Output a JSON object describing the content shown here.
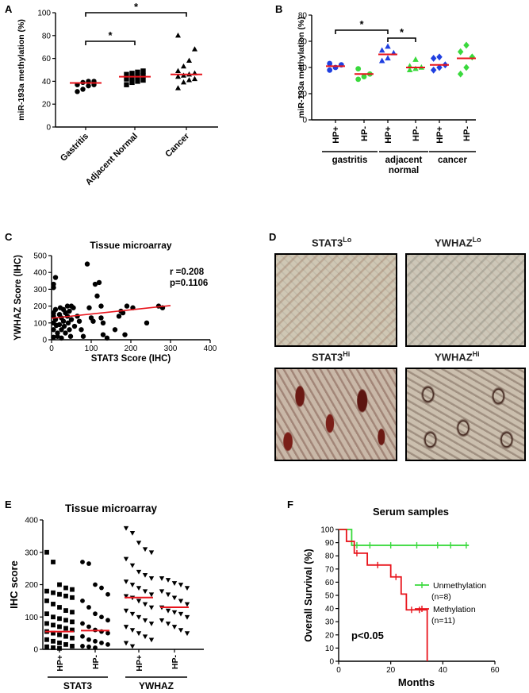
{
  "panels": {
    "a": "A",
    "b": "B",
    "c": "C",
    "d": "D",
    "e": "E",
    "f": "F"
  },
  "colors": {
    "red": "#e8141c",
    "blue": "#1f3fe0",
    "green": "#39d93c",
    "black": "#000000"
  },
  "chart_data": [
    {
      "panel": "A",
      "type": "scatter",
      "ylabel": "miR-193a methylation (%)",
      "ylim": [
        0,
        100
      ],
      "yticks": [
        "0",
        "20",
        "40",
        "60",
        "80",
        "100"
      ],
      "categories": [
        "Gastritis",
        "Adjacent Normal",
        "Cancer"
      ],
      "series": [
        {
          "category": "Gastritis",
          "marker": "circle",
          "values": [
            31,
            33,
            36,
            37,
            37,
            39,
            40,
            40
          ],
          "median": 38.5
        },
        {
          "category": "Adjacent Normal",
          "marker": "square",
          "values": [
            37,
            39,
            40,
            41,
            42,
            43,
            44,
            45,
            46,
            47,
            48,
            49
          ],
          "median": 44
        },
        {
          "category": "Cancer",
          "marker": "triangle",
          "values": [
            34,
            39,
            41,
            42,
            44,
            45,
            46,
            47,
            49,
            53,
            58,
            68,
            80
          ],
          "median": 46
        }
      ],
      "significance": [
        {
          "from": "Gastritis",
          "to": "Adjacent Normal",
          "label": "*"
        },
        {
          "from": "Gastritis",
          "to": "Cancer",
          "label": "*"
        }
      ]
    },
    {
      "panel": "B",
      "type": "scatter",
      "ylabel": "miR-193a methylation (%)",
      "ylim": [
        0,
        80
      ],
      "yticks": [
        "0",
        "20",
        "40",
        "60",
        "80"
      ],
      "categories": [
        "HP+",
        "HP-",
        "HP+",
        "HP-",
        "HP+",
        "HP-"
      ],
      "groups": [
        "gastritis",
        "adjacent\nnormal",
        "cancer"
      ],
      "series": [
        {
          "category": "HP+",
          "group": "gastritis",
          "marker": "circle",
          "color": "#1f3fe0",
          "values": [
            38,
            40,
            42,
            43
          ],
          "median": 41
        },
        {
          "category": "HP-",
          "group": "gastritis",
          "marker": "circle",
          "color": "#39d93c",
          "values": [
            31,
            33,
            35,
            39
          ],
          "median": 35
        },
        {
          "category": "HP+",
          "group": "adjacent normal",
          "marker": "triangle",
          "color": "#1f3fe0",
          "values": [
            45,
            47,
            51,
            53,
            56
          ],
          "median": 50
        },
        {
          "category": "HP-",
          "group": "adjacent normal",
          "marker": "triangle",
          "color": "#39d93c",
          "values": [
            38,
            39,
            40,
            41,
            46
          ],
          "median": 40
        },
        {
          "category": "HP+",
          "group": "cancer",
          "marker": "diamond",
          "color": "#1f3fe0",
          "values": [
            38,
            40,
            42,
            47,
            48
          ],
          "median": 42
        },
        {
          "category": "HP-",
          "group": "cancer",
          "marker": "diamond",
          "color": "#39d93c",
          "values": [
            35,
            40,
            48,
            52,
            57
          ],
          "median": 47
        }
      ],
      "significance": [
        {
          "from": 0,
          "to": 2,
          "label": "*"
        },
        {
          "from": 2,
          "to": 3,
          "label": "*"
        }
      ]
    },
    {
      "panel": "C",
      "type": "scatter",
      "title": "Tissue microarray",
      "xlabel": "STAT3 Score (IHC)",
      "ylabel": "YWHAZ Score (IHC)",
      "xlim": [
        0,
        400
      ],
      "ylim": [
        0,
        500
      ],
      "xticks": [
        "0",
        "100",
        "200",
        "300",
        "400"
      ],
      "yticks": [
        "0",
        "100",
        "200",
        "300",
        "400",
        "500"
      ],
      "annotation": [
        "r =0.208",
        "p=0.1106"
      ],
      "fit": {
        "x": [
          0,
          300
        ],
        "y": [
          128,
          203
        ]
      },
      "points": [
        [
          5,
          330
        ],
        [
          10,
          370
        ],
        [
          5,
          310
        ],
        [
          5,
          160
        ],
        [
          5,
          140
        ],
        [
          5,
          100
        ],
        [
          5,
          60
        ],
        [
          5,
          15
        ],
        [
          10,
          180
        ],
        [
          10,
          120
        ],
        [
          12,
          85
        ],
        [
          15,
          40
        ],
        [
          15,
          20
        ],
        [
          20,
          150
        ],
        [
          20,
          90
        ],
        [
          22,
          190
        ],
        [
          25,
          130
        ],
        [
          25,
          60
        ],
        [
          25,
          10
        ],
        [
          30,
          180
        ],
        [
          30,
          110
        ],
        [
          32,
          80
        ],
        [
          35,
          160
        ],
        [
          35,
          40
        ],
        [
          40,
          200
        ],
        [
          40,
          140
        ],
        [
          42,
          100
        ],
        [
          45,
          170
        ],
        [
          45,
          60
        ],
        [
          48,
          20
        ],
        [
          50,
          200
        ],
        [
          50,
          120
        ],
        [
          55,
          190
        ],
        [
          58,
          80
        ],
        [
          65,
          140
        ],
        [
          70,
          110
        ],
        [
          75,
          60
        ],
        [
          80,
          20
        ],
        [
          90,
          450
        ],
        [
          95,
          190
        ],
        [
          100,
          130
        ],
        [
          105,
          110
        ],
        [
          110,
          330
        ],
        [
          115,
          260
        ],
        [
          120,
          340
        ],
        [
          125,
          200
        ],
        [
          125,
          130
        ],
        [
          130,
          100
        ],
        [
          130,
          30
        ],
        [
          140,
          10
        ],
        [
          160,
          60
        ],
        [
          170,
          140
        ],
        [
          175,
          170
        ],
        [
          180,
          160
        ],
        [
          185,
          30
        ],
        [
          190,
          200
        ],
        [
          205,
          190
        ],
        [
          240,
          100
        ],
        [
          270,
          200
        ],
        [
          280,
          190
        ]
      ]
    },
    {
      "panel": "E",
      "type": "scatter",
      "title": "Tissue microarray",
      "ylabel": "IHC score",
      "ylim": [
        0,
        400
      ],
      "yticks": [
        "0",
        "100",
        "200",
        "300",
        "400"
      ],
      "categories": [
        "HP+",
        "HP-",
        "HP+",
        "HP-"
      ],
      "groups": [
        "STAT3",
        "YWHAZ"
      ],
      "series": [
        {
          "category": "HP+",
          "group": "STAT3",
          "marker": "square",
          "median": 55,
          "values": [
            300,
            270,
            200,
            190,
            185,
            180,
            175,
            170,
            165,
            160,
            150,
            140,
            130,
            120,
            115,
            110,
            100,
            95,
            90,
            85,
            80,
            75,
            70,
            65,
            60,
            55,
            50,
            45,
            40,
            35,
            30,
            25,
            20,
            15,
            10,
            8,
            5,
            3
          ]
        },
        {
          "category": "HP-",
          "group": "STAT3",
          "marker": "circle",
          "median": 58,
          "values": [
            270,
            265,
            200,
            190,
            170,
            150,
            130,
            110,
            100,
            90,
            80,
            70,
            60,
            55,
            50,
            40,
            30,
            25,
            20,
            15,
            10,
            8,
            5
          ]
        },
        {
          "category": "HP+",
          "group": "YWHAZ",
          "marker": "triangle-down",
          "median": 160,
          "values": [
            375,
            360,
            330,
            310,
            300,
            280,
            260,
            240,
            230,
            220,
            210,
            200,
            190,
            180,
            170,
            165,
            160,
            150,
            140,
            130,
            120,
            110,
            100,
            90,
            80,
            70,
            60,
            50,
            40,
            30,
            20,
            10
          ]
        },
        {
          "category": "HP-",
          "group": "YWHAZ",
          "marker": "triangle-down",
          "median": 130,
          "values": [
            220,
            215,
            205,
            200,
            190,
            180,
            170,
            160,
            150,
            140,
            130,
            120,
            115,
            110,
            100,
            90,
            80,
            70,
            60,
            50
          ]
        }
      ]
    },
    {
      "panel": "F",
      "type": "line",
      "title": "Serum samples",
      "xlabel": "Months",
      "ylabel": "Overall Survival (%)",
      "xlim": [
        0,
        60
      ],
      "ylim": [
        0,
        100
      ],
      "xticks": [
        "0",
        "20",
        "40",
        "60"
      ],
      "yticks": [
        "0",
        "10",
        "20",
        "30",
        "40",
        "50",
        "60",
        "70",
        "80",
        "90",
        "100"
      ],
      "annotation": "p<0.05",
      "series": [
        {
          "name": "Unmethylation",
          "n": "(n=8)",
          "color": "#39d93c",
          "steps": [
            [
              0,
              100
            ],
            [
              5,
              100
            ],
            [
              5,
              88
            ],
            [
              50,
              88
            ]
          ],
          "censors": [
            [
              7,
              88
            ],
            [
              12,
              88
            ],
            [
              20,
              88
            ],
            [
              30,
              88
            ],
            [
              38,
              88
            ],
            [
              43,
              88
            ],
            [
              49,
              88
            ]
          ]
        },
        {
          "name": "Methylation",
          "n": "(n=11)",
          "color": "#e8141c",
          "steps": [
            [
              0,
              100
            ],
            [
              3,
              100
            ],
            [
              3,
              91
            ],
            [
              6,
              91
            ],
            [
              6,
              82
            ],
            [
              11,
              82
            ],
            [
              11,
              73
            ],
            [
              20,
              73
            ],
            [
              20,
              64
            ],
            [
              24,
              64
            ],
            [
              24,
              51
            ],
            [
              26,
              51
            ],
            [
              26,
              39
            ],
            [
              34,
              39
            ],
            [
              34,
              0
            ]
          ],
          "censors": [
            [
              7,
              82
            ],
            [
              15,
              73
            ],
            [
              22,
              64
            ],
            [
              28,
              39
            ],
            [
              31,
              39
            ]
          ]
        }
      ]
    }
  ],
  "micrographs": {
    "stat3_lo": {
      "title": "STAT3",
      "sup": "Lo"
    },
    "ywhaz_lo": {
      "title": "YWHAZ",
      "sup": "Lo"
    },
    "stat3_hi": {
      "title": "STAT3",
      "sup": "Hi"
    },
    "ywhaz_hi": {
      "title": "YWHAZ",
      "sup": "Hi"
    }
  }
}
